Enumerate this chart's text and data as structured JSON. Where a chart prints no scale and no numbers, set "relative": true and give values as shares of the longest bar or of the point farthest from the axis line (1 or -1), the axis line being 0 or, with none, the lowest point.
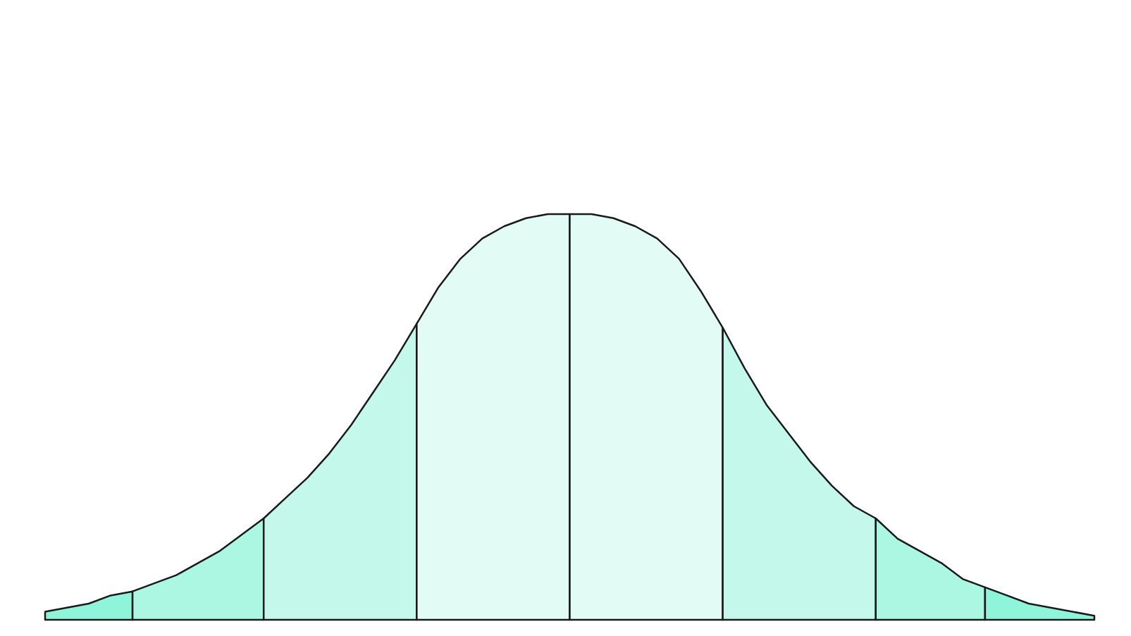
{
  "chart_data": {
    "type": "area",
    "relative": true,
    "categories": [
      null,
      null,
      null,
      null,
      null,
      null,
      null,
      null,
      null,
      null,
      null,
      null,
      null,
      null,
      null,
      null,
      null,
      null,
      null,
      null,
      null,
      null,
      null,
      null,
      null,
      null,
      null,
      null,
      null,
      null,
      null,
      null,
      null,
      null,
      null,
      null,
      null,
      null,
      null,
      null,
      null,
      null,
      null,
      null,
      null,
      null,
      null,
      null,
      null
    ],
    "series": [
      {
        "color": "#8ef5da",
        "values": [
          0.02,
          0.03,
          0.04,
          0.06,
          0.07,
          null,
          null,
          null,
          null,
          null,
          null,
          null,
          null,
          null,
          null,
          null,
          null,
          null,
          null,
          null,
          null,
          null,
          null,
          null,
          null,
          null,
          null,
          null,
          null,
          null,
          null,
          null,
          null,
          null,
          null,
          null,
          null,
          null,
          null,
          null,
          null,
          null,
          null,
          null,
          null,
          null,
          null,
          null,
          null
        ]
      },
      {
        "color": "#abf7e2",
        "values": [
          null,
          null,
          null,
          null,
          0.07,
          0.09,
          0.11,
          0.14,
          0.17,
          0.21,
          0.25,
          null,
          null,
          null,
          null,
          null,
          null,
          null,
          null,
          null,
          null,
          null,
          null,
          null,
          null,
          null,
          null,
          null,
          null,
          null,
          null,
          null,
          null,
          null,
          null,
          null,
          null,
          null,
          null,
          null,
          null,
          null,
          null,
          null,
          null,
          null,
          null,
          null,
          null
        ]
      },
      {
        "color": "#c4f8ea",
        "values": [
          null,
          null,
          null,
          null,
          null,
          null,
          null,
          null,
          null,
          null,
          0.25,
          0.3,
          0.35,
          0.41,
          0.48,
          0.56,
          0.64,
          0.73,
          null,
          null,
          null,
          null,
          null,
          null,
          null,
          null,
          null,
          null,
          null,
          null,
          null,
          null,
          null,
          null,
          null,
          null,
          null,
          null,
          null,
          null,
          null,
          null,
          null,
          null,
          null,
          null,
          null,
          null,
          null
        ]
      },
      {
        "color": "#e2fbf5",
        "values": [
          null,
          null,
          null,
          null,
          null,
          null,
          null,
          null,
          null,
          null,
          null,
          null,
          null,
          null,
          null,
          null,
          null,
          0.73,
          0.82,
          0.89,
          0.94,
          0.97,
          0.99,
          1,
          1,
          null,
          null,
          null,
          null,
          null,
          null,
          null,
          null,
          null,
          null,
          null,
          null,
          null,
          null,
          null,
          null,
          null,
          null,
          null,
          null,
          null,
          null,
          null,
          null
        ]
      },
      {
        "color": "#e2fbf5",
        "values": [
          null,
          null,
          null,
          null,
          null,
          null,
          null,
          null,
          null,
          null,
          null,
          null,
          null,
          null,
          null,
          null,
          null,
          null,
          null,
          null,
          null,
          null,
          null,
          null,
          1,
          1,
          0.99,
          0.97,
          0.94,
          0.89,
          0.81,
          0.72,
          null,
          null,
          null,
          null,
          null,
          null,
          null,
          null,
          null,
          null,
          null,
          null,
          null,
          null,
          null,
          null,
          null
        ]
      },
      {
        "color": "#c4f8ea",
        "values": [
          null,
          null,
          null,
          null,
          null,
          null,
          null,
          null,
          null,
          null,
          null,
          null,
          null,
          null,
          null,
          null,
          null,
          null,
          null,
          null,
          null,
          null,
          null,
          null,
          null,
          null,
          null,
          null,
          null,
          null,
          null,
          0.72,
          0.62,
          0.53,
          0.46,
          0.39,
          0.33,
          0.28,
          0.25,
          null,
          null,
          null,
          null,
          null,
          null,
          null,
          null,
          null,
          null
        ]
      },
      {
        "color": "#abf7e2",
        "values": [
          null,
          null,
          null,
          null,
          null,
          null,
          null,
          null,
          null,
          null,
          null,
          null,
          null,
          null,
          null,
          null,
          null,
          null,
          null,
          null,
          null,
          null,
          null,
          null,
          null,
          null,
          null,
          null,
          null,
          null,
          null,
          null,
          null,
          null,
          null,
          null,
          null,
          null,
          0.25,
          0.2,
          0.17,
          0.14,
          0.1,
          0.08,
          null,
          null,
          null,
          null,
          null
        ]
      },
      {
        "color": "#8ef5da",
        "values": [
          null,
          null,
          null,
          null,
          null,
          null,
          null,
          null,
          null,
          null,
          null,
          null,
          null,
          null,
          null,
          null,
          null,
          null,
          null,
          null,
          null,
          null,
          null,
          null,
          null,
          null,
          null,
          null,
          null,
          null,
          null,
          null,
          null,
          null,
          null,
          null,
          null,
          null,
          null,
          null,
          null,
          null,
          null,
          0.08,
          0.06,
          0.04,
          0.03,
          0.02,
          0.01
        ]
      }
    ]
  }
}
